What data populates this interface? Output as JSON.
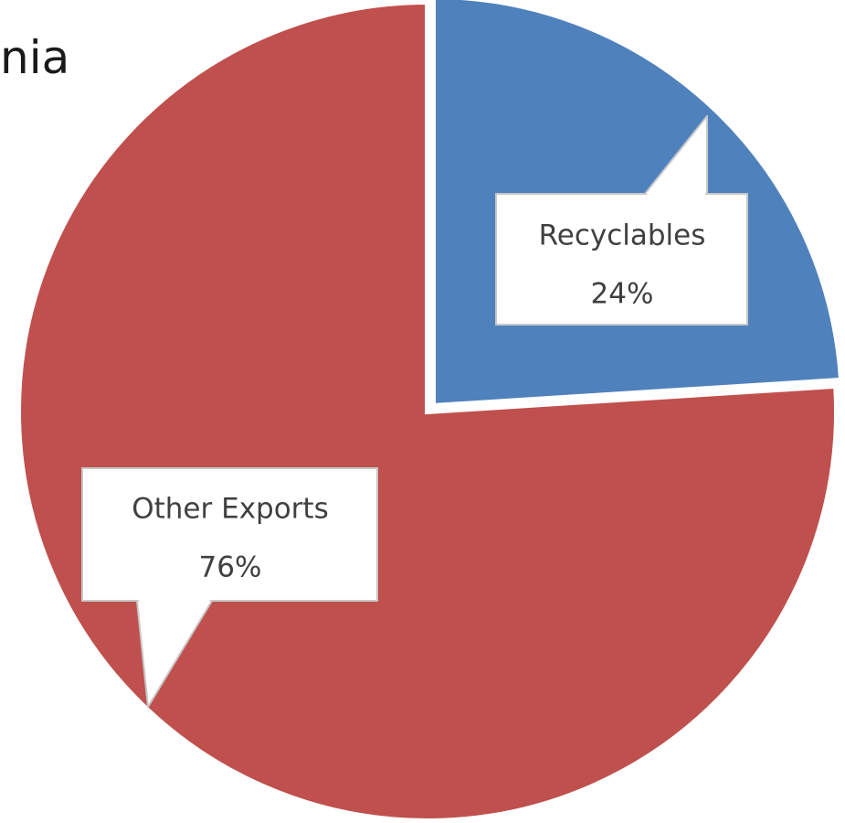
{
  "title_fragment": "nia",
  "chart_data": {
    "type": "pie",
    "slices": [
      {
        "label": "Recyclables",
        "value": 24,
        "value_label": "24%",
        "color": "#4f81bd"
      },
      {
        "label": "Other Exports",
        "value": 76,
        "value_label": "76%",
        "color": "#c0504d"
      }
    ],
    "legend": "none",
    "data_labels": "callouts"
  }
}
